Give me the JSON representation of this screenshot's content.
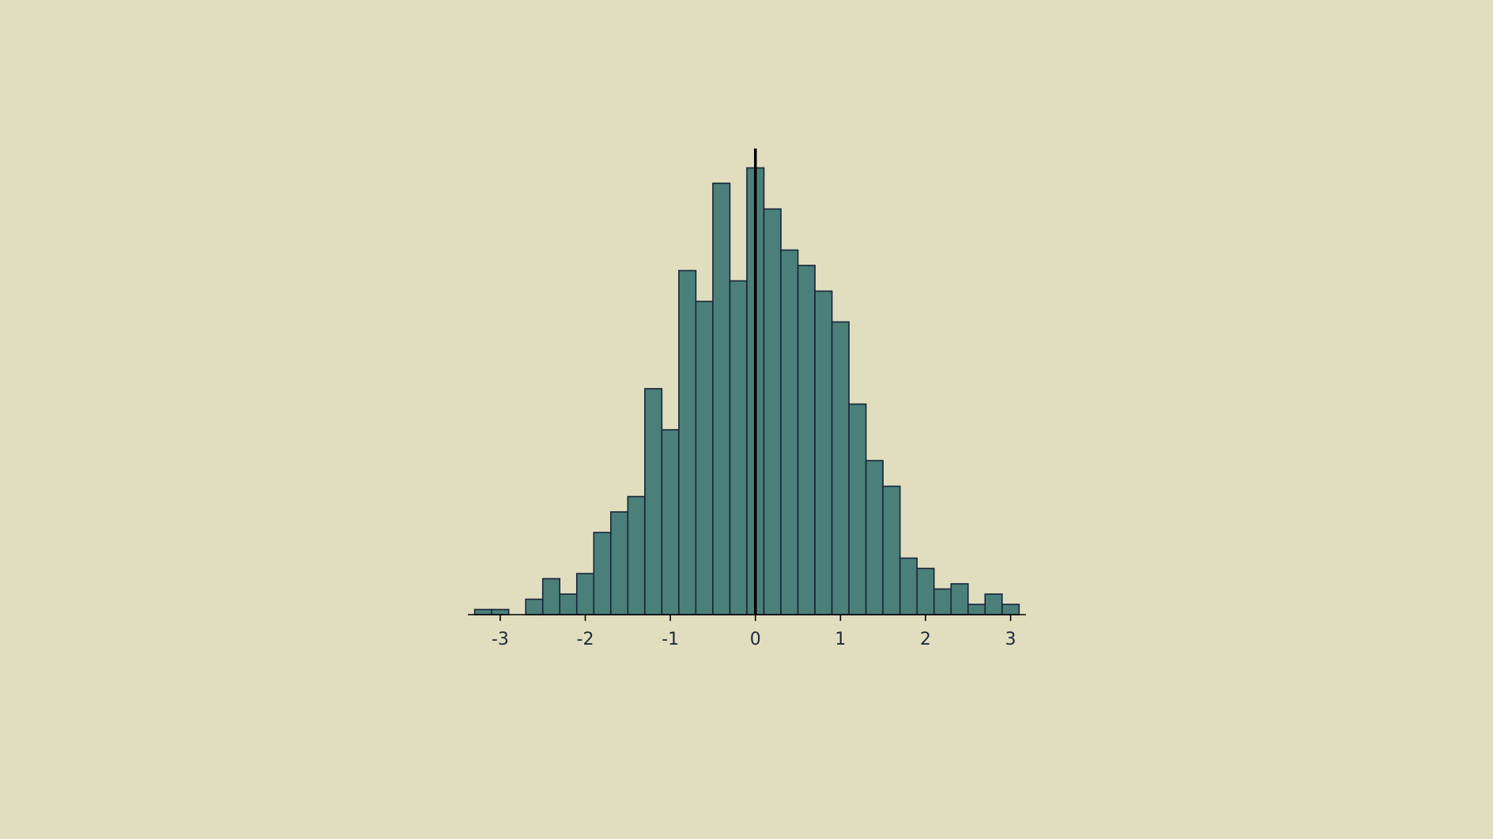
{
  "colors": {
    "background": "#e1dec0",
    "bar_fill": "#4a8079",
    "bar_stroke": "#17243a",
    "axis": "#000000",
    "tick_label": "#1c2b3a"
  },
  "chart_data": {
    "type": "bar",
    "subtype": "histogram",
    "title": "",
    "xlabel": "",
    "ylabel": "",
    "grid": false,
    "legend": "none",
    "y_axis_visible": false,
    "xlim": [
      -3.38,
      3.18
    ],
    "ylim": [
      0,
      90
    ],
    "x_ticks": [
      -3,
      -2,
      -1,
      0,
      1,
      2,
      3
    ],
    "x_tick_labels": [
      "-3",
      "-2",
      "-1",
      "0",
      "1",
      "2",
      "3"
    ],
    "vertical_line_at_x": 0,
    "bin_edges": [
      -3.3,
      -3.1,
      -2.9,
      -2.7,
      -2.5,
      -2.3,
      -2.1,
      -1.9,
      -1.7,
      -1.5,
      -1.3,
      -1.1,
      -0.9,
      -0.7,
      -0.5,
      -0.3,
      -0.1,
      0.1,
      0.3,
      0.5,
      0.7,
      0.9,
      1.1,
      1.3,
      1.5,
      1.7,
      1.9,
      2.1,
      2.3,
      2.5,
      2.7,
      2.9,
      3.1
    ],
    "counts": [
      1,
      1,
      0,
      3,
      7,
      4,
      8,
      16,
      20,
      23,
      44,
      36,
      67,
      61,
      84,
      65,
      87,
      79,
      71,
      68,
      63,
      57,
      41,
      30,
      25,
      11,
      9,
      5,
      6,
      2,
      4,
      2
    ]
  }
}
